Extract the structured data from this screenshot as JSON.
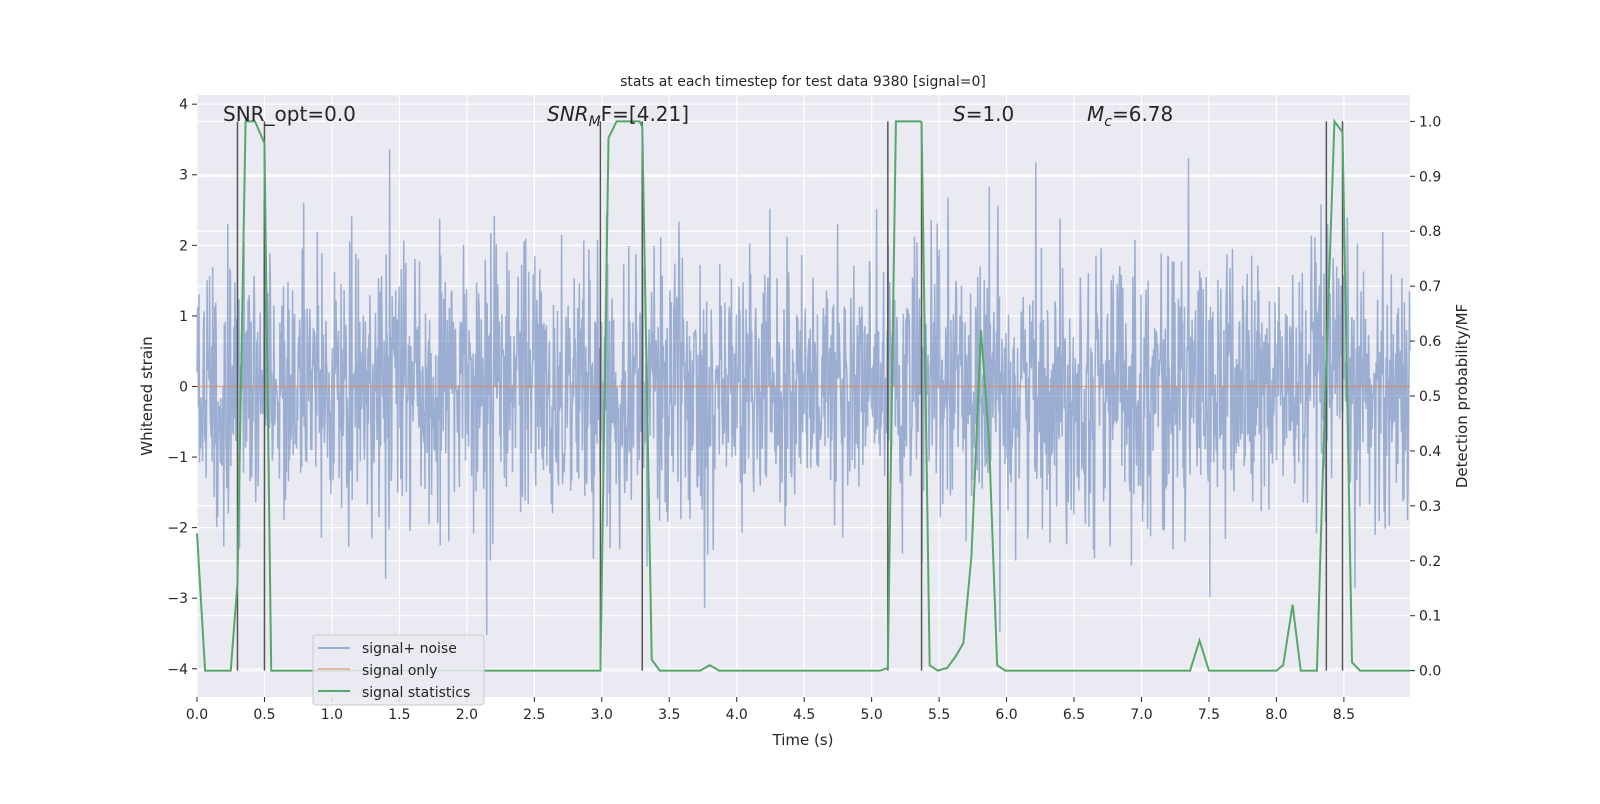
{
  "chart_data": {
    "type": "line",
    "title": "stats at each timestep for test data 9380 [signal=0]",
    "xlabel": "Time (s)",
    "ylabel": "Whitened strain",
    "y2label": "Detection probability/MF",
    "xlim": [
      0.0,
      8.99
    ],
    "ylim": [
      -4.4,
      4.13
    ],
    "y2lim": [
      -0.048,
      1.048
    ],
    "xticks": [
      "0.0",
      "0.5",
      "1.0",
      "1.5",
      "2.0",
      "2.5",
      "3.0",
      "3.5",
      "4.0",
      "4.5",
      "5.0",
      "5.5",
      "6.0",
      "6.5",
      "7.0",
      "7.5",
      "8.0",
      "8.5"
    ],
    "yticks": [
      "4",
      "3",
      "2",
      "1",
      "0",
      "−1",
      "−2",
      "−3",
      "−4"
    ],
    "y2ticks": [
      "1.0",
      "0.9",
      "0.8",
      "0.7",
      "0.6",
      "0.5",
      "0.4",
      "0.3",
      "0.2",
      "0.1",
      "0.0"
    ],
    "grid": true,
    "legend": {
      "placement": "lower-left",
      "entries": [
        "signal+ noise",
        "signal only",
        "signal statistics"
      ]
    },
    "annotations": [
      {
        "text": "SNR_opt=0.0",
        "x": 0.2
      },
      {
        "pre": "SNR",
        "sub": "M",
        "post": "F=[4.21]",
        "x": 2.6
      },
      {
        "pre": "S",
        "sub": "",
        "post": "=1.0",
        "x": 5.6
      },
      {
        "pre": "M",
        "sub": "c",
        "post": "=6.78",
        "x": 6.6
      }
    ],
    "series": [
      {
        "name": "signal+ noise",
        "axis": "left",
        "color": "#4c72b0",
        "noise": {
          "samples": 2400,
          "std": 0.95,
          "seed": 9380
        }
      },
      {
        "name": "signal only",
        "axis": "left",
        "color": "#dd8452",
        "x": [
          0,
          8.99
        ],
        "y": [
          0,
          0
        ]
      },
      {
        "name": "signal statistics",
        "axis": "right",
        "color": "#55a868",
        "x": [
          0,
          0.06,
          0.25,
          0.3,
          0.36,
          0.43,
          0.5,
          0.55,
          2.99,
          3.05,
          3.11,
          3.28,
          3.3,
          3.37,
          3.43,
          3.73,
          3.8,
          3.87,
          5.06,
          5.12,
          5.18,
          5.36,
          5.37,
          5.43,
          5.49,
          5.56,
          5.62,
          5.68,
          5.74,
          5.81,
          5.87,
          5.93,
          5.99,
          7.36,
          7.43,
          7.5,
          8.0,
          8.05,
          8.12,
          8.18,
          8.3,
          8.36,
          8.43,
          8.49,
          8.56,
          8.62,
          8.99
        ],
        "y": [
          0.25,
          0,
          0,
          0.16,
          1.0,
          1.0,
          0.96,
          0,
          0,
          0.97,
          1.0,
          1.0,
          0.99,
          0.02,
          0,
          0,
          0.01,
          0,
          0,
          0.005,
          1.0,
          1.0,
          0.998,
          0.01,
          0,
          0.005,
          0.025,
          0.05,
          0.21,
          0.62,
          0.42,
          0.01,
          0,
          0,
          0.055,
          0,
          0,
          0.01,
          0.12,
          0,
          0,
          0.49,
          1.0,
          0.98,
          0.015,
          0,
          0
        ]
      }
    ],
    "event_markers": {
      "color": "#555555",
      "x": [
        0.3,
        0.5,
        2.99,
        3.3,
        5.12,
        5.37,
        8.37,
        8.49
      ],
      "y2_range": [
        0,
        1.0
      ]
    }
  }
}
